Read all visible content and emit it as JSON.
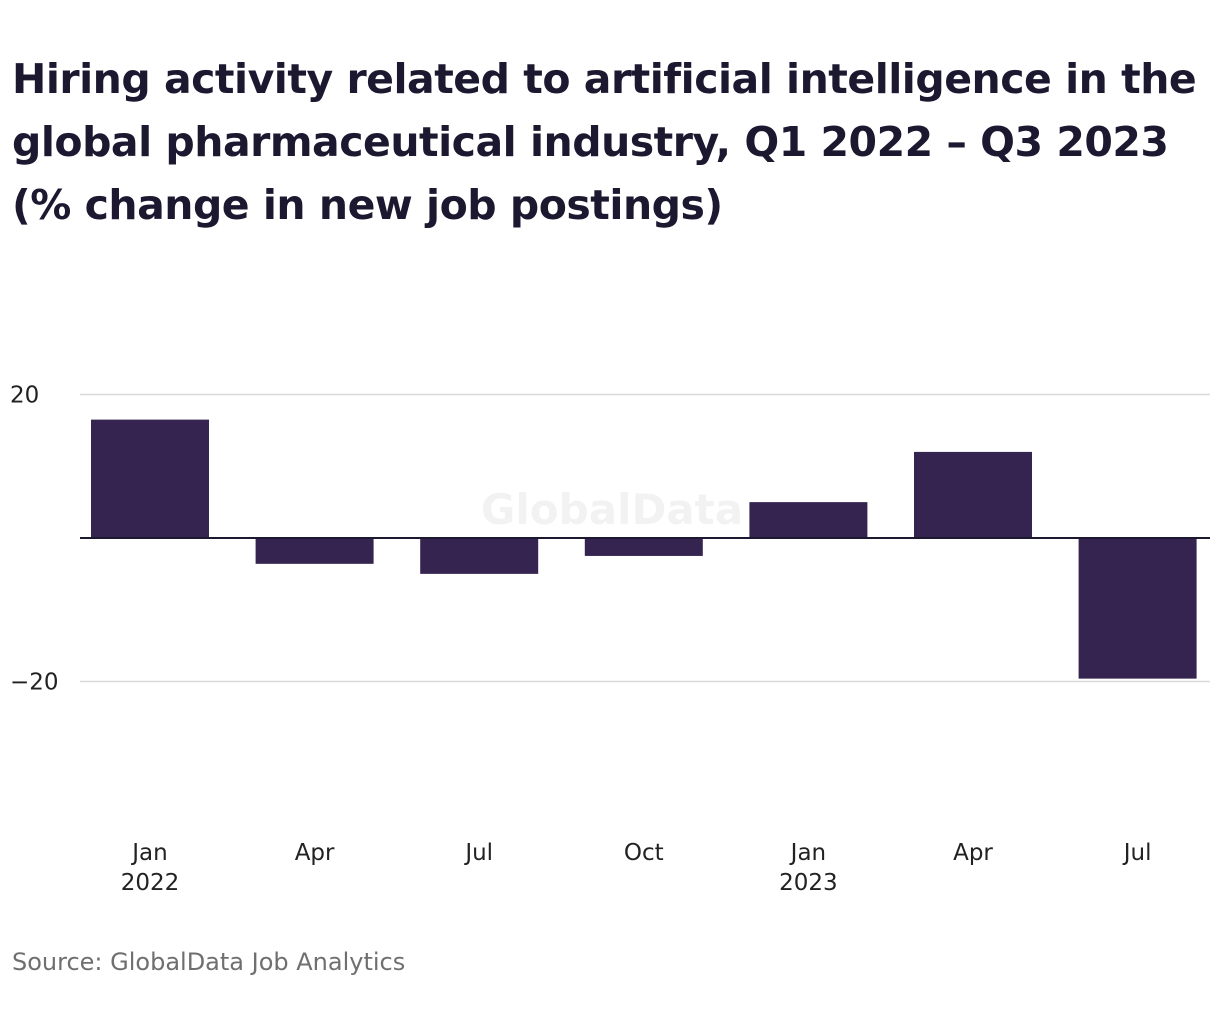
{
  "title": "Hiring activity related to artificial intelligence in the global pharmaceutical industry, Q1 2022 – Q3 2023 (% change in new job postings)",
  "source": "Source: GlobalData Job Analytics",
  "watermark": "GlobalData",
  "colors": {
    "bar": "#352450",
    "grid": "#d9d9d9",
    "zero_line": "#1b1830",
    "axis_text": "#222222"
  },
  "chart_data": {
    "type": "bar",
    "categories": [
      "Jan 2022",
      "Apr",
      "Jul",
      "Oct",
      "Jan 2023",
      "Apr",
      "Jul"
    ],
    "tick_labels": [
      [
        "Jan",
        "2022"
      ],
      [
        "Apr"
      ],
      [
        "Jul"
      ],
      [
        "Oct"
      ],
      [
        "Jan",
        "2023"
      ],
      [
        "Apr"
      ],
      [
        "Jul"
      ]
    ],
    "values": [
      16.5,
      -3.6,
      -5.0,
      -2.5,
      5.0,
      12.0,
      -19.6
    ],
    "y_ticks": [
      20,
      -20
    ],
    "y_tick_labels": [
      "20",
      "−20"
    ],
    "ylim": [
      -20,
      20
    ],
    "grid": true,
    "xlabel": "",
    "ylabel": ""
  }
}
